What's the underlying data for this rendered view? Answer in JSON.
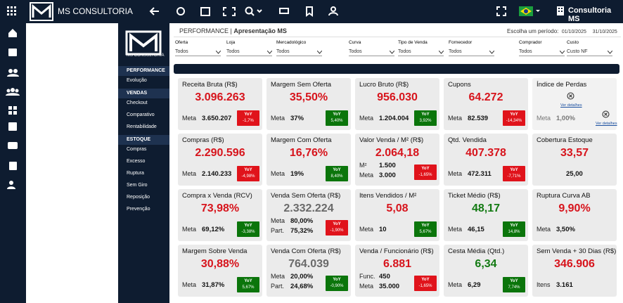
{
  "topbar": {
    "brand": "MS CONSULTORIA",
    "user": "Consultoria MS"
  },
  "nav": {
    "logo": "MS CONSULTORIA",
    "sections": [
      {
        "title": "PERFORMANCE",
        "items": [
          "Evolução"
        ]
      },
      {
        "title": "VENDAS",
        "items": [
          "Checkout",
          "Comparativo",
          "Rentabilidade"
        ]
      },
      {
        "title": "ESTOQUE",
        "items": [
          "Compras",
          "Excesso",
          "Ruptura",
          "Sem Giro",
          "Reposição",
          "Prevenção"
        ]
      }
    ]
  },
  "header": {
    "section": "PERFORMANCE",
    "separator": "|",
    "title": "Apresentação MS",
    "period_label": "Escolha um período:",
    "start": "01/10/2025",
    "end": "31/10/2025"
  },
  "filters": [
    {
      "label": "Oferta",
      "value": "Todos"
    },
    {
      "label": "Loja",
      "value": "Todos"
    },
    {
      "label": "Mercadológico",
      "value": "Todos"
    },
    {
      "label": "Curva",
      "value": "Todos"
    },
    {
      "label": "Tipo de Venda",
      "value": "Todos"
    },
    {
      "label": "Fornecedor",
      "value": "Todos"
    },
    {
      "label": "Comprador",
      "value": "Todos"
    },
    {
      "label": "Custo",
      "value": "Custo NF"
    }
  ],
  "cards": [
    {
      "title": "Receita Bruta (R$)",
      "value": "3.096.263",
      "color": "red",
      "lines": [
        {
          "label": "Meta",
          "value": "3.650.207"
        }
      ],
      "yoy": {
        "label": "YoY",
        "value": "-1,7%",
        "color": "red"
      }
    },
    {
      "title": "Margem Sem Oferta",
      "value": "35,50%",
      "color": "red",
      "lines": [
        {
          "label": "Meta",
          "value": "37%"
        }
      ],
      "yoy": {
        "label": "YoY",
        "value": "5,40%",
        "color": "green"
      }
    },
    {
      "title": "Lucro Bruto (R$)",
      "value": "956.030",
      "color": "red",
      "lines": [
        {
          "label": "Meta",
          "value": "1.204.004"
        }
      ],
      "yoy": {
        "label": "YoY",
        "value": "3,92%",
        "color": "green"
      }
    },
    {
      "title": "Cupons",
      "value": "64.272",
      "color": "red",
      "lines": [
        {
          "label": "Meta",
          "value": "82.539"
        }
      ],
      "yoy": {
        "label": "YoY",
        "value": "-14,34%",
        "color": "red"
      }
    },
    {
      "title": "Índice de Perdas",
      "lines": [
        {
          "label": "Meta",
          "value": "1,00%"
        }
      ],
      "links": [
        "Ver detalhes",
        "Ver detalhes"
      ]
    },
    {
      "title": "Compras (R$)",
      "value": "2.290.596",
      "color": "red",
      "lines": [
        {
          "label": "Meta",
          "value": "2.140.233"
        }
      ],
      "yoy": {
        "label": "YoY",
        "value": "-4,98%",
        "color": "red"
      }
    },
    {
      "title": "Margem Com Oferta",
      "value": "16,76%",
      "color": "red",
      "lines": [
        {
          "label": "Meta",
          "value": "19%"
        }
      ],
      "yoy": {
        "label": "YoY",
        "value": "8,40%",
        "color": "green"
      }
    },
    {
      "title": "Valor Venda / M² (R$)",
      "value": "2.064,18",
      "color": "red",
      "lines": [
        {
          "label": "M²",
          "value": "1.500"
        },
        {
          "label": "Meta",
          "value": "3.000"
        }
      ],
      "yoy": {
        "label": "YoY",
        "value": "-1,65%",
        "color": "red"
      }
    },
    {
      "title": "Qtd. Vendida",
      "value": "407.378",
      "color": "red",
      "lines": [
        {
          "label": "Meta",
          "value": "472.311"
        }
      ],
      "yoy": {
        "label": "YoY",
        "value": "-7,71%",
        "color": "red"
      }
    },
    {
      "title": "Cobertura Estoque",
      "value": "33,57",
      "color": "red",
      "lines": [
        {
          "value": "25,00"
        }
      ]
    },
    {
      "title": "Compra x Venda (RCV)",
      "value": "73,98%",
      "color": "red",
      "lines": [
        {
          "label": "Meta",
          "value": "69,12%"
        }
      ],
      "yoy": {
        "label": "YoY",
        "value": "-3,38%",
        "color": "green"
      }
    },
    {
      "title": "Venda Sem Oferta (R$)",
      "value": "2.332.224",
      "color": "gray",
      "lines": [
        {
          "label": "Meta",
          "value": "80,00%"
        },
        {
          "label": "Part.",
          "value": "75,32%"
        }
      ],
      "yoy": {
        "label": "YoY",
        "value": "-1,90%",
        "color": "red"
      }
    },
    {
      "title": "Itens Vendidos / M²",
      "value": "5,08",
      "color": "red",
      "lines": [
        {
          "label": "Meta",
          "value": "10"
        }
      ],
      "yoy": {
        "label": "YoY",
        "value": "5,67%",
        "color": "green"
      }
    },
    {
      "title": "Ticket Médio (R$)",
      "value": "48,17",
      "color": "green",
      "lines": [
        {
          "label": "Meta",
          "value": "46,15"
        }
      ],
      "yoy": {
        "label": "YoY",
        "value": "14,8%",
        "color": "green"
      }
    },
    {
      "title": "Ruptura Curva AB",
      "value": "9,90%",
      "color": "red",
      "lines": [
        {
          "label": "Meta",
          "value": "3,50%"
        }
      ]
    },
    {
      "title": "Margem Sobre Venda",
      "value": "30,88%",
      "color": "red",
      "lines": [
        {
          "label": "Meta",
          "value": "31,87%"
        }
      ],
      "yoy": {
        "label": "YoY",
        "value": "5,67%",
        "color": "green"
      }
    },
    {
      "title": "Venda Com Oferta (R$)",
      "value": "764.039",
      "color": "gray",
      "lines": [
        {
          "label": "Meta",
          "value": "20,00%"
        },
        {
          "label": "Part.",
          "value": "24,68%"
        }
      ],
      "yoy": {
        "label": "YoY",
        "value": "-0,90%",
        "color": "green"
      }
    },
    {
      "title": "Venda / Funcionário (R$)",
      "value": "6.881",
      "color": "red",
      "lines": [
        {
          "label": "Func.",
          "value": "450"
        },
        {
          "label": "Meta",
          "value": "35.000"
        }
      ],
      "yoy": {
        "label": "YoY",
        "value": "-1,65%",
        "color": "red"
      }
    },
    {
      "title": "Cesta Média (Qtd.)",
      "value": "6,34",
      "color": "green",
      "lines": [
        {
          "label": "Meta",
          "value": "6,29"
        }
      ],
      "yoy": {
        "label": "YoY",
        "value": "7,74%",
        "color": "green"
      }
    },
    {
      "title": "Sem Venda + 30 Dias (R$)",
      "value": "346.906",
      "color": "red",
      "lines": [
        {
          "label": "Itens",
          "value": "3.161"
        }
      ]
    }
  ]
}
